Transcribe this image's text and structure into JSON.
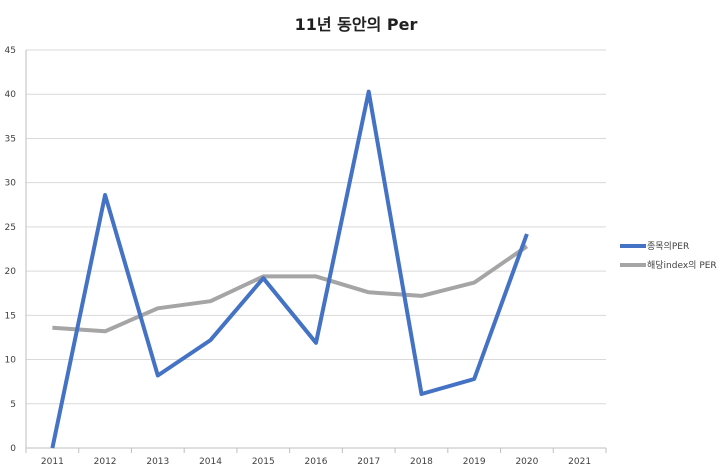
{
  "chart_data": {
    "type": "line",
    "title": "11년 동안의 Per",
    "xlabel": "",
    "ylabel": "",
    "categories": [
      "2011",
      "2012",
      "2013",
      "2014",
      "2015",
      "2016",
      "2017",
      "2018",
      "2019",
      "2020",
      "2021"
    ],
    "yticks": [
      0,
      5,
      10,
      15,
      20,
      25,
      30,
      35,
      40,
      45
    ],
    "ylim": [
      0,
      45
    ],
    "grid": "horizontal",
    "legend_position": "right",
    "series": [
      {
        "name": "종목의PER",
        "color": "#4472C4",
        "values": [
          0,
          28.6,
          8.2,
          12.2,
          19.2,
          11.9,
          40.3,
          6.1,
          7.8,
          24.2,
          null
        ]
      },
      {
        "name": "해당index의 PER",
        "color": "#A5A5A5",
        "values": [
          13.6,
          13.2,
          15.8,
          16.6,
          19.4,
          19.4,
          17.6,
          17.2,
          18.7,
          22.8,
          null
        ]
      }
    ]
  }
}
